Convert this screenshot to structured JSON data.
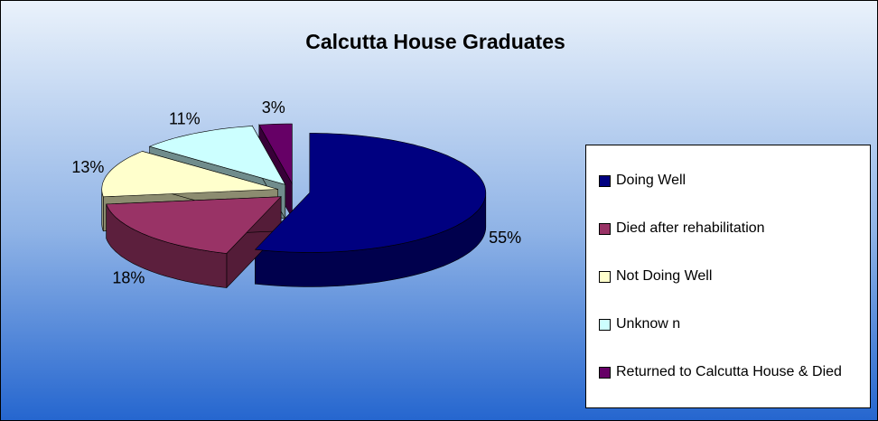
{
  "chart_data": {
    "type": "pie",
    "title": "Calcutta House Graduates",
    "categories": [
      "Doing Well",
      "Died after rehabilitation",
      "Not Doing Well",
      "Unknow n",
      "Returned to Calcutta House & Died"
    ],
    "values": [
      55,
      18,
      13,
      11,
      3
    ],
    "value_labels": [
      "55%",
      "18%",
      "13%",
      "11%",
      "3%"
    ],
    "colors": [
      "#000080",
      "#993366",
      "#FFFFCC",
      "#CCFFFF",
      "#660066"
    ],
    "legend": "right"
  }
}
